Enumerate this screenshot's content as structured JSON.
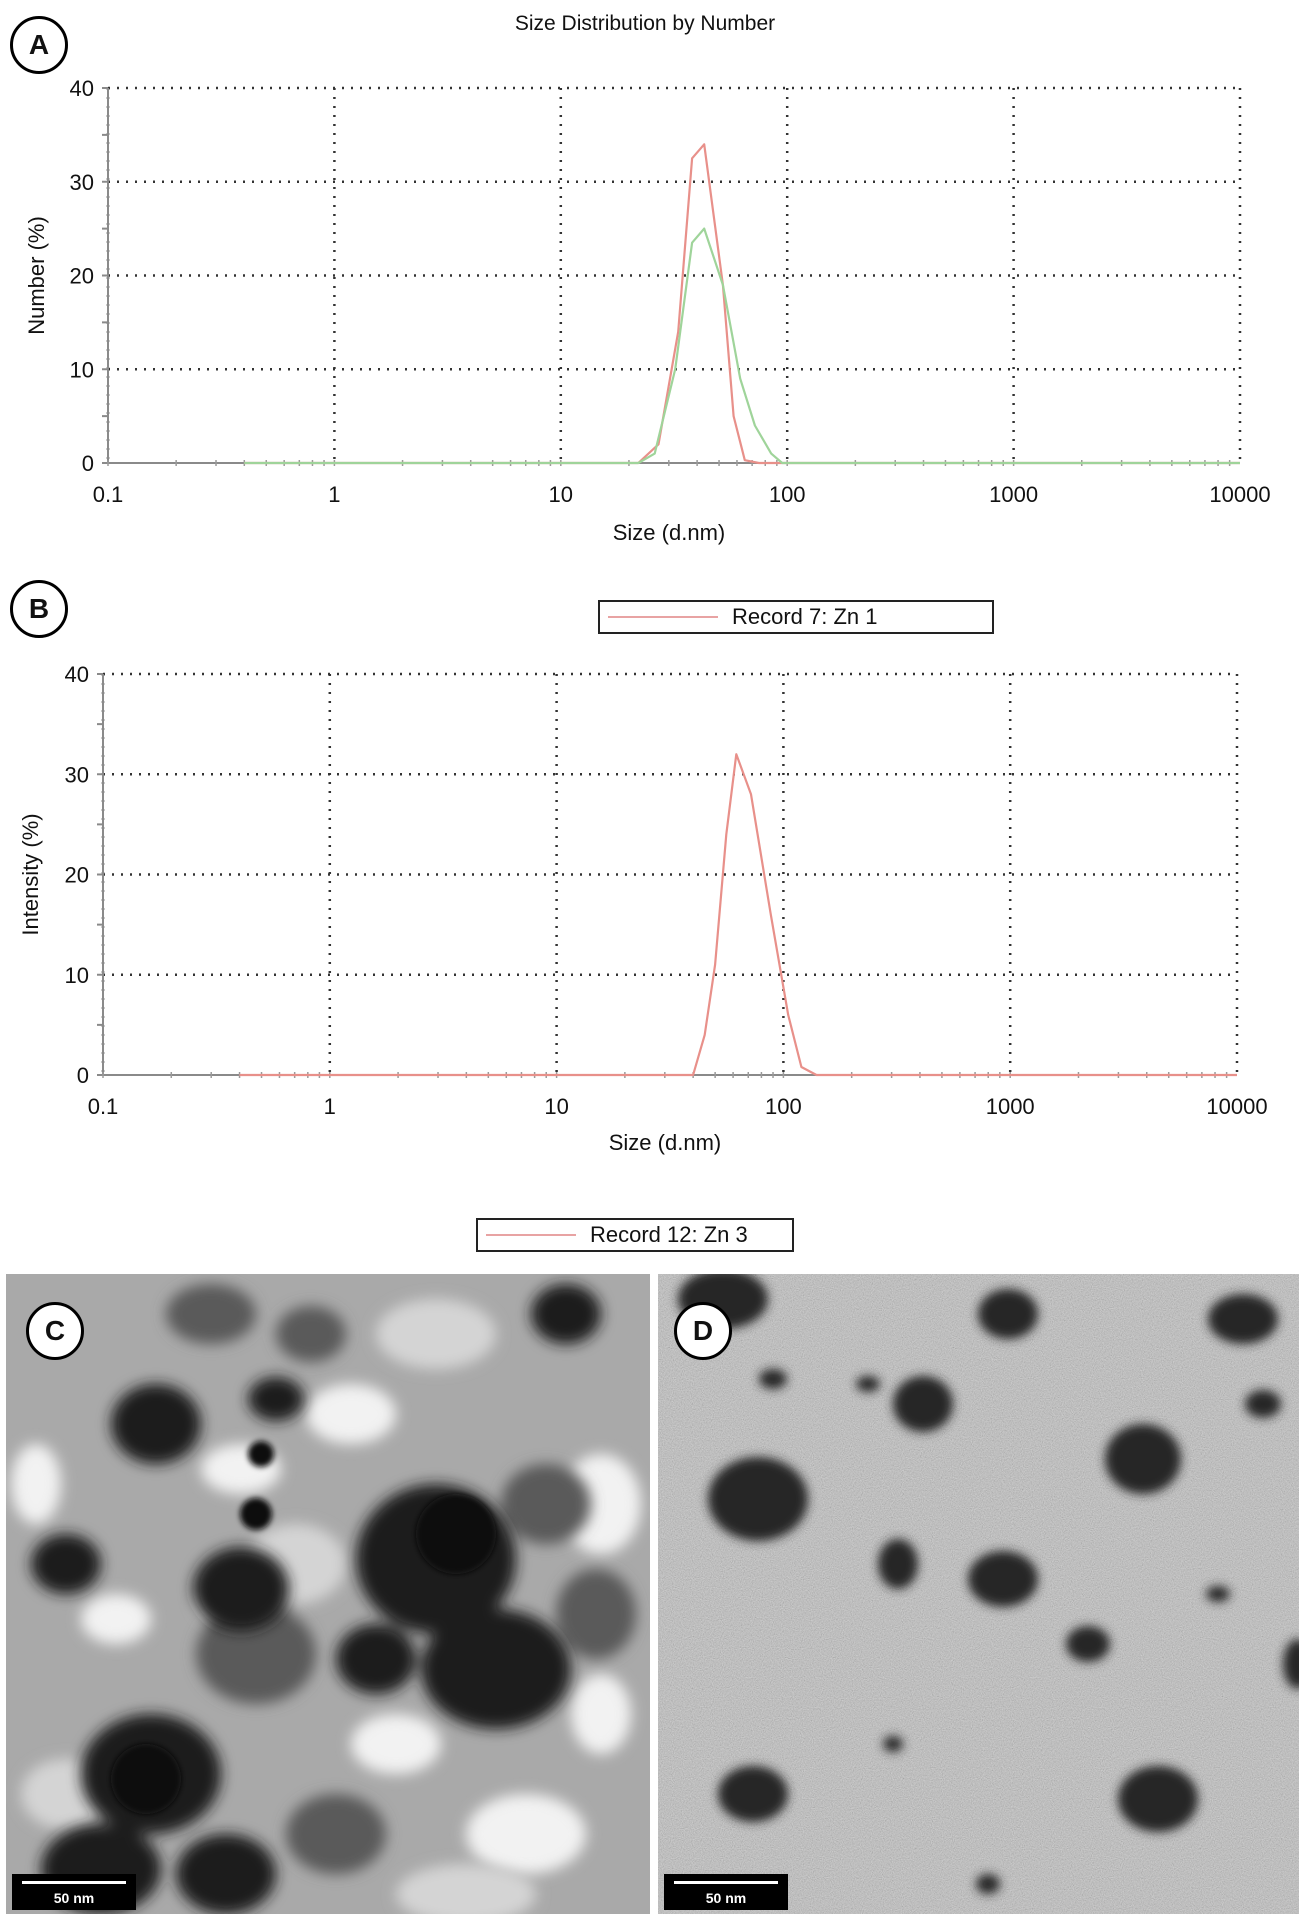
{
  "chart_data": [
    {
      "panel": "A",
      "type": "line",
      "title": "Size Distribution by Number",
      "xlabel": "Size (d.nm)",
      "ylabel": "Number (%)",
      "xscale": "log",
      "xlim": [
        0.1,
        10000
      ],
      "ylim": [
        0,
        40
      ],
      "xticks": [
        "0.1",
        "1",
        "10",
        "100",
        "1000",
        "10000"
      ],
      "yticks": [
        "0",
        "10",
        "20",
        "30",
        "40"
      ],
      "grid": true,
      "series": [
        {
          "color": "#e8908a",
          "x": [
            0.4,
            22,
            27,
            33,
            38,
            43,
            52,
            58,
            65,
            75,
            10000
          ],
          "values": [
            0,
            0,
            2,
            14,
            32.5,
            34,
            19,
            5,
            0.3,
            0,
            0
          ]
        },
        {
          "color": "#9fd49a",
          "x": [
            0.4,
            22,
            26,
            32,
            38,
            43,
            52,
            62,
            72,
            85,
            95,
            10000
          ],
          "values": [
            0,
            0,
            1,
            10,
            23.5,
            25,
            19,
            9,
            4,
            1,
            0,
            0
          ]
        }
      ]
    },
    {
      "panel": "B",
      "type": "line",
      "xlabel": "Size (d.nm)",
      "ylabel": "Intensity (%)",
      "xscale": "log",
      "xlim": [
        0.1,
        10000
      ],
      "ylim": [
        0,
        40
      ],
      "xticks": [
        "0.1",
        "1",
        "10",
        "100",
        "1000",
        "10000"
      ],
      "yticks": [
        "0",
        "10",
        "20",
        "30",
        "40"
      ],
      "grid": true,
      "series": [
        {
          "color": "#e8908a",
          "x": [
            0.4,
            40,
            45,
            50,
            56,
            62,
            72,
            88,
            105,
            120,
            140,
            10000
          ],
          "values": [
            0,
            0,
            4,
            11,
            24,
            32,
            28,
            16,
            6,
            0.8,
            0,
            0
          ]
        }
      ]
    }
  ],
  "panels": {
    "a": "A",
    "b": "B",
    "c": "C",
    "d": "D"
  },
  "legends": {
    "record7": "Record 7: Zn 1",
    "record12": "Record 12: Zn 3"
  },
  "scale_bars": {
    "c": "50 nm",
    "d": "50 nm"
  }
}
